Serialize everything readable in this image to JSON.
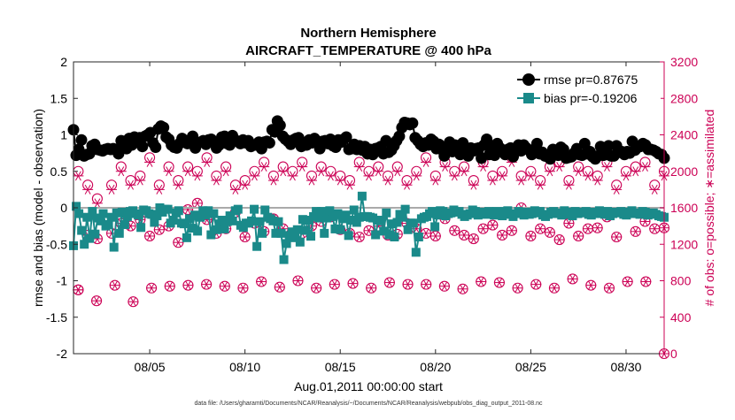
{
  "chart_data": {
    "type": "line",
    "title": "Northern Hemisphere",
    "subtitle": "AIRCRAFT_TEMPERATURE @ 400 hPa",
    "xlabel": "Aug.01,2011 00:00:00 start",
    "ylabel_left": "rmse and bias (model - observation)",
    "ylabel_right": "# of obs: o=possible; ∗=assimilated",
    "footnote": "data file: /Users/gharamti/Documents/NCAR/Reanalysis/~/Documents/NCAR/Reanalysis/webpub/obs_diag_output_2011-08.nc",
    "xlim": [
      1,
      32
    ],
    "ylim_left": [
      -2,
      2
    ],
    "ylim_right": [
      0,
      3200
    ],
    "x_ticks": [
      5,
      10,
      15,
      20,
      25,
      30
    ],
    "x_tick_labels": [
      "08/05",
      "08/10",
      "08/15",
      "08/20",
      "08/25",
      "08/30"
    ],
    "y_left_ticks": [
      -2,
      -1.5,
      -1,
      -0.5,
      0,
      0.5,
      1,
      1.5,
      2
    ],
    "y_left_tick_labels": [
      "-2",
      "-1.5",
      "-1",
      "-0.5",
      "0",
      "0.5",
      "1",
      "1.5",
      "2"
    ],
    "y_right_ticks": [
      0,
      400,
      800,
      1200,
      1600,
      2000,
      2400,
      2800,
      3200
    ],
    "y_right_tick_labels": [
      "0",
      "400",
      "800",
      "1200",
      "1600",
      "2000",
      "2400",
      "2800",
      "3200"
    ],
    "legend": [
      {
        "name": "rmse pr=0.87675",
        "color": "#000000",
        "marker": "circle"
      },
      {
        "name": "bias pr=-0.19206",
        "color": "#1a8a8a",
        "marker": "square"
      }
    ],
    "legend_position": "top-right",
    "colors": {
      "rmse": "#000000",
      "bias": "#1a8a8a",
      "obs": "#cc0055",
      "zero": "#aaaaaa"
    },
    "rmse": [
      1.07,
      0.72,
      0.8,
      0.93,
      0.71,
      0.73,
      0.74,
      0.85,
      0.87,
      0.8,
      0.79,
      0.78,
      0.8,
      0.81,
      0.8,
      0.81,
      0.8,
      0.74,
      0.92,
      0.86,
      0.81,
      0.95,
      0.86,
      0.97,
      0.93,
      0.96,
      0.84,
      0.98,
      1.0,
      1.03,
      0.89,
      0.83,
      1.08,
      1.12,
      1.1,
      0.97,
      0.94,
      0.86,
      0.83,
      0.82,
      0.88,
      0.95,
      0.92,
      0.88,
      0.93,
      0.98,
      0.82,
      0.89,
      0.9,
      0.92,
      0.87,
      0.93,
      0.94,
      0.9,
      0.82,
      0.86,
      0.97,
      0.98,
      0.88,
      0.86,
      0.99,
      0.93,
      0.91,
      0.88,
      0.93,
      0.89,
      0.92,
      0.84,
      0.86,
      0.86,
      0.9,
      0.81,
      0.9,
      0.91,
      0.89,
      1.07,
      1.04,
      1.19,
      1.13,
      0.98,
      0.94,
      0.91,
      0.87,
      0.93,
      0.95,
      0.96,
      0.84,
      0.87,
      0.86,
      0.93,
      0.89,
      0.95,
      0.91,
      0.81,
      0.91,
      0.92,
      0.88,
      0.94,
      0.85,
      0.83,
      0.93,
      0.9,
      0.94,
      0.97,
      0.8,
      0.81,
      0.87,
      0.8,
      0.85,
      0.79,
      0.84,
      0.74,
      0.8,
      0.73,
      0.81,
      0.82,
      0.84,
      0.74,
      0.92,
      0.76,
      0.79,
      0.85,
      0.92,
      0.98,
      1.1,
      1.17,
      1.16,
      1.14,
      1.16,
      0.96,
      0.92,
      0.87,
      0.84,
      0.89,
      0.86,
      0.94,
      0.91,
      0.81,
      0.87,
      0.8,
      0.71,
      0.79,
      0.9,
      0.77,
      0.86,
      0.82,
      0.73,
      0.89,
      0.79,
      0.71,
      0.82,
      0.78,
      0.81,
      0.82,
      0.68,
      0.86,
      0.94,
      0.73,
      0.85,
      0.72,
      0.88,
      0.82,
      0.78,
      0.73,
      0.8,
      0.82,
      0.7,
      0.79,
      0.86,
      0.78,
      0.86,
      0.82,
      0.79,
      0.73,
      0.8,
      0.88,
      0.74,
      0.76,
      0.71,
      0.7,
      0.67,
      0.8,
      0.79,
      0.72,
      0.83,
      0.8,
      0.68,
      0.69,
      0.7,
      0.75,
      0.81,
      0.73,
      0.72,
      0.88,
      0.74,
      0.77,
      0.7,
      0.67,
      0.71,
      0.84,
      0.72,
      0.73,
      0.85,
      0.71,
      0.71,
      0.85,
      0.76,
      0.77,
      0.73,
      0.77,
      0.75,
      0.91,
      0.79,
      0.83,
      0.84,
      0.88,
      0.86,
      0.8,
      0.8,
      0.79,
      0.77,
      0.74,
      0.73,
      0.68
    ],
    "bias": [
      -0.52,
      0.02,
      -0.08,
      -0.31,
      -0.5,
      -0.13,
      -0.42,
      -0.05,
      -0.36,
      -0.14,
      -0.18,
      -0.08,
      -0.25,
      -0.23,
      -0.13,
      -0.54,
      -0.07,
      -0.35,
      -0.06,
      -0.23,
      -0.12,
      -0.05,
      -0.04,
      -0.08,
      -0.1,
      -0.27,
      -0.03,
      -0.04,
      -0.08,
      -0.09,
      -0.2,
      -0.11,
      0.0,
      -0.06,
      -0.02,
      -0.02,
      -0.21,
      -0.17,
      -0.07,
      -0.04,
      -0.21,
      -0.22,
      -0.41,
      -0.15,
      -0.28,
      -0.1,
      -0.32,
      -0.13,
      -0.04,
      -0.1,
      -0.04,
      -0.37,
      -0.08,
      -0.3,
      -0.22,
      -0.17,
      -0.29,
      -0.19,
      -0.11,
      -0.18,
      -0.04,
      -0.02,
      -0.24,
      -0.27,
      -0.21,
      -0.21,
      -0.18,
      -0.02,
      -0.53,
      -0.19,
      -0.35,
      -0.03,
      -0.13,
      -0.15,
      -0.18,
      -0.35,
      -0.19,
      -0.35,
      -0.71,
      -0.49,
      -0.38,
      -0.33,
      -0.41,
      -0.3,
      -0.47,
      -0.16,
      -0.31,
      -0.17,
      -0.39,
      -0.12,
      -0.05,
      -0.14,
      -0.05,
      -0.35,
      -0.14,
      -0.04,
      -0.12,
      -0.29,
      -0.08,
      -0.3,
      -0.15,
      -0.1,
      -0.38,
      -0.17,
      -0.03,
      -0.2,
      -0.13,
      0.16,
      -0.12,
      -0.12,
      -0.13,
      -0.14,
      -0.37,
      -0.17,
      -0.18,
      -0.32,
      -0.07,
      -0.37,
      -0.22,
      -0.4,
      -0.2,
      -0.09,
      -0.13,
      -0.02,
      -0.3,
      -0.21,
      -0.21,
      -0.61,
      -0.4,
      -0.15,
      -0.13,
      -0.12,
      -0.08,
      -0.05,
      -0.26,
      -0.1,
      -0.04,
      -0.05,
      -0.11,
      -0.08,
      -0.07,
      -0.03,
      -0.06,
      -0.05,
      -0.09,
      -0.12,
      -0.1,
      -0.08,
      -0.03,
      -0.05,
      -0.1,
      -0.06,
      -0.07,
      -0.09,
      -0.05,
      -0.07,
      -0.1,
      -0.05,
      -0.08,
      -0.11,
      -0.05,
      -0.04,
      -0.09,
      -0.12,
      -0.08,
      -0.05,
      -0.07,
      -0.1,
      -0.06,
      -0.09,
      -0.08,
      -0.04,
      -0.07,
      -0.05,
      -0.1,
      -0.12,
      -0.09,
      -0.06,
      -0.05,
      -0.08,
      -0.07,
      -0.1,
      -0.04,
      -0.06,
      -0.09,
      -0.11,
      -0.05,
      -0.08,
      -0.07,
      -0.06,
      -0.05,
      -0.09,
      -0.1,
      -0.06,
      -0.08,
      -0.04,
      -0.07,
      -0.09,
      -0.05,
      -0.11,
      -0.08,
      -0.06,
      -0.07,
      -0.05,
      -0.09,
      -0.1,
      -0.06,
      -0.04,
      -0.08,
      -0.07,
      -0.09,
      -0.05,
      -0.06,
      -0.1,
      -0.08,
      -0.07,
      -0.09,
      -0.11,
      -0.12,
      -0.13
    ],
    "obs_possible_x": [
      1.25,
      1.75,
      2.25,
      3.0,
      3.5,
      4.0,
      4.5,
      5.0,
      5.5,
      6.0,
      6.5,
      7.0,
      7.5,
      8.0,
      8.5,
      9.0,
      9.5,
      10.0,
      10.5,
      11.0,
      11.5,
      12.0,
      12.5,
      13.0,
      13.5,
      14.0,
      14.5,
      15.0,
      15.5,
      16.0,
      16.5,
      17.0,
      17.5,
      18.0,
      18.5,
      19.0,
      19.5,
      20.0,
      20.5,
      21.0,
      21.5,
      22.0,
      22.5,
      23.0,
      23.5,
      24.0,
      24.5,
      25.0,
      25.5,
      26.0,
      26.5,
      27.0,
      27.5,
      28.0,
      28.5,
      29.0,
      29.5,
      30.0,
      30.5,
      31.0,
      31.5,
      32.0
    ],
    "obs_possible_high": [
      2000,
      1850,
      1700,
      1850,
      2050,
      1900,
      1950,
      2150,
      1850,
      2050,
      1900,
      2050,
      2000,
      2150,
      1950,
      2050,
      1850,
      1900,
      2000,
      2100,
      1950,
      2050,
      2000,
      2100,
      1950,
      2050,
      2000,
      1950,
      1900,
      2100,
      2000,
      2050,
      1950,
      2050,
      1900,
      2000,
      2150,
      1950,
      2100,
      2000,
      2050,
      1900,
      2100,
      1950,
      2000,
      2150,
      1950,
      2000,
      1900,
      2050,
      2100,
      1900,
      2050,
      2000,
      1950,
      2100,
      1850,
      2000,
      2050,
      2100,
      1850,
      2000
    ],
    "obs_possible_low": [
      700,
      1300,
      1260,
      1320,
      1430,
      1400,
      1470,
      1290,
      1360,
      1400,
      1220,
      1580,
      1650,
      1470,
      1320,
      1370,
      1550,
      1280,
      1430,
      1340,
      1480,
      1370,
      1290,
      1320,
      1400,
      1450,
      1500,
      1360,
      1320,
      1280,
      1350,
      1400,
      1300,
      1310,
      1430,
      1370,
      1320,
      1290,
      1480,
      1350,
      1300,
      1260,
      1370,
      1410,
      1300,
      1350,
      1600,
      1290,
      1370,
      1330,
      1250,
      1430,
      1290,
      1370,
      1380,
      1500,
      1280,
      1550,
      1340,
      1450,
      1370,
      1380
    ],
    "obs_possible_bottom": [
      700,
      580,
      750,
      570,
      720,
      740,
      750,
      760,
      740,
      720,
      790,
      730,
      800,
      720,
      760,
      770,
      720,
      780,
      760,
      760,
      740,
      710,
      790,
      780,
      720,
      760,
      720,
      820,
      750,
      720,
      790,
      790,
      0
    ],
    "obs_assimilated_high": [
      1950,
      1800,
      1650,
      1800,
      2000,
      1850,
      1900,
      2100,
      1800,
      2000,
      1850,
      2000,
      1950,
      2100,
      1900,
      2000,
      1800,
      1850,
      1950,
      2050,
      1900,
      2000,
      1950,
      2050,
      1900,
      2000,
      1950,
      1900,
      1850,
      2050,
      1950,
      2000,
      1900,
      2000,
      1850,
      1950,
      2100,
      1900,
      2050,
      1950,
      2000,
      1850,
      2050,
      1900,
      1950,
      2100,
      1900,
      1950,
      1850,
      2000,
      2050,
      1850,
      2000,
      1950,
      1900,
      2050,
      1800,
      1950,
      2000,
      2050,
      1800,
      1950
    ]
  }
}
